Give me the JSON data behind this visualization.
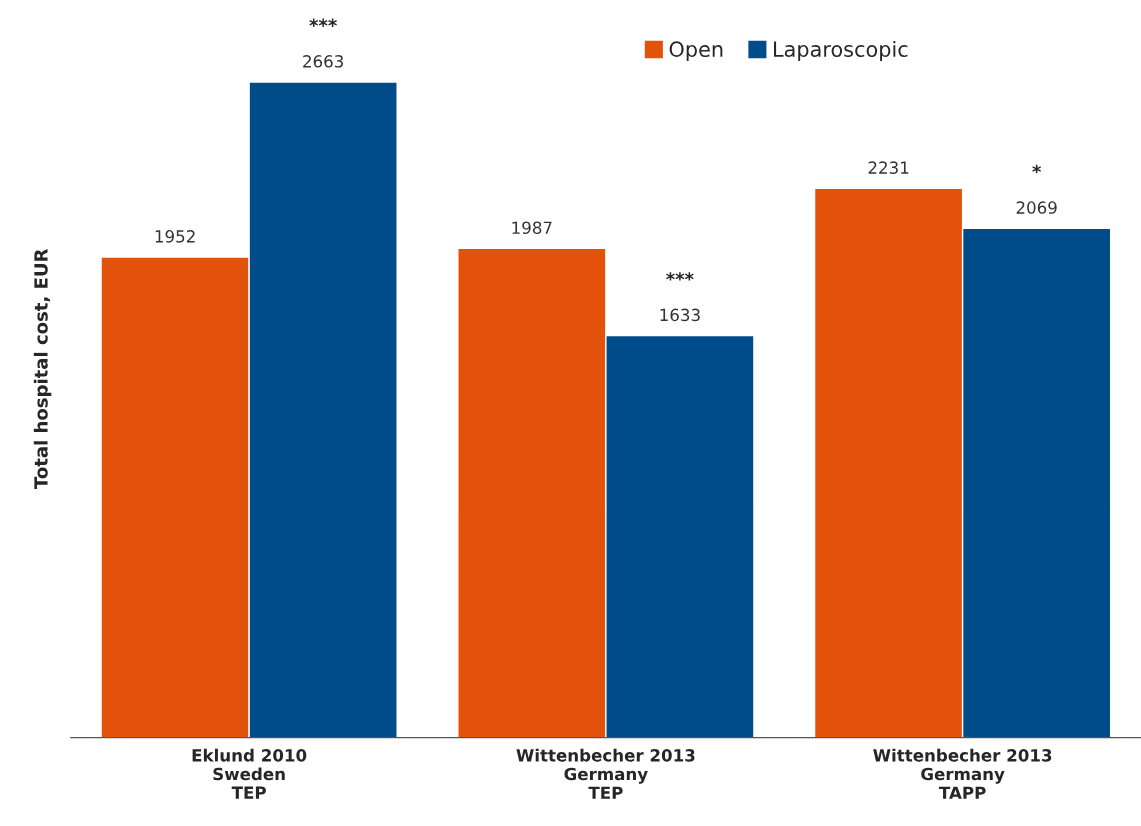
{
  "chart_data": {
    "type": "bar",
    "ylabel": "Total hospital cost, EUR",
    "categories": [
      "Eklund 2010\nSweden\nTEP",
      "Wittenbecher 2013\nGermany\nTEP",
      "Wittenbecher 2013\nGermany\nTAPP"
    ],
    "series": [
      {
        "name": "Open",
        "color": "#e2520a",
        "values": [
          1952,
          1987,
          2231
        ]
      },
      {
        "name": "Laparoscopic",
        "color": "#004b8a",
        "values": [
          2663,
          1633,
          2069
        ]
      }
    ],
    "data_labels": true,
    "grid": false,
    "legend": "top",
    "annotations": [
      "***",
      "***",
      "*"
    ]
  }
}
